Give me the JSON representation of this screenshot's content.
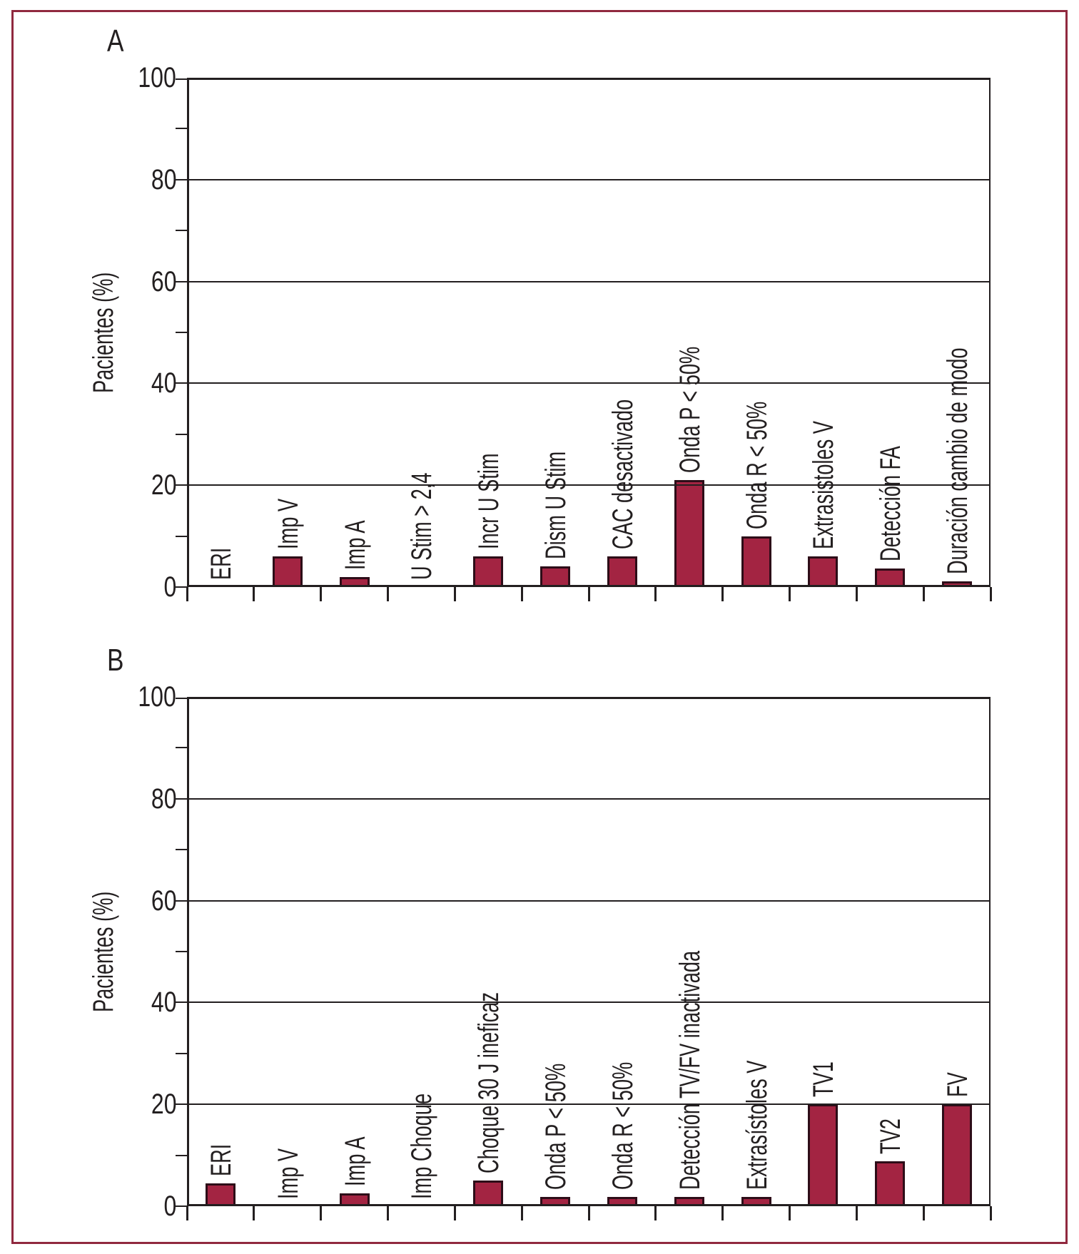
{
  "figure": {
    "panels": [
      "A",
      "B"
    ],
    "border_color": "#90293F",
    "bar_fill": "#A32442",
    "bar_stroke": "#2D0D18",
    "ink_color": "#231F20",
    "background": "#FFFFFF"
  },
  "chart_data": [
    {
      "type": "bar",
      "panel": "A",
      "title": "",
      "xlabel": "",
      "ylabel": "Pacientes (%)",
      "ylim": [
        0,
        100
      ],
      "ytick_interval": 20,
      "minor_tick_interval": 10,
      "grid": true,
      "legend": false,
      "bar_color": "#A32442",
      "categories": [
        "ERI",
        "Imp V",
        "Imp A",
        "U Stim > 2,4",
        "Incr U Stim",
        "Dism U Stim",
        "CAC desactivado",
        "Onda P < 50%",
        "Onda R < 50%",
        "Extrasistoles V",
        "Detección FA",
        "Duración cambio de modo"
      ],
      "values": [
        0,
        6,
        2,
        0,
        6,
        4,
        6,
        21,
        10,
        6,
        3.6,
        1.1
      ]
    },
    {
      "type": "bar",
      "panel": "B",
      "title": "",
      "xlabel": "",
      "ylabel": "Pacientes (%)",
      "ylim": [
        0,
        100
      ],
      "ytick_interval": 20,
      "minor_tick_interval": 10,
      "grid": true,
      "legend": false,
      "bar_color": "#A32442",
      "categories": [
        "ERI",
        "Imp V",
        "Imp A",
        "Imp Choque",
        "Choque 30 J ineficaz",
        "Onda P < 50%",
        "Onda R < 50%",
        "Detección TV/FV inactivada",
        "Extrasístoles V",
        "TV1",
        "TV2",
        "FV"
      ],
      "values": [
        4.5,
        0,
        2.5,
        0,
        5,
        1.8,
        1.8,
        1.8,
        1.8,
        20,
        8.8,
        20
      ]
    }
  ]
}
